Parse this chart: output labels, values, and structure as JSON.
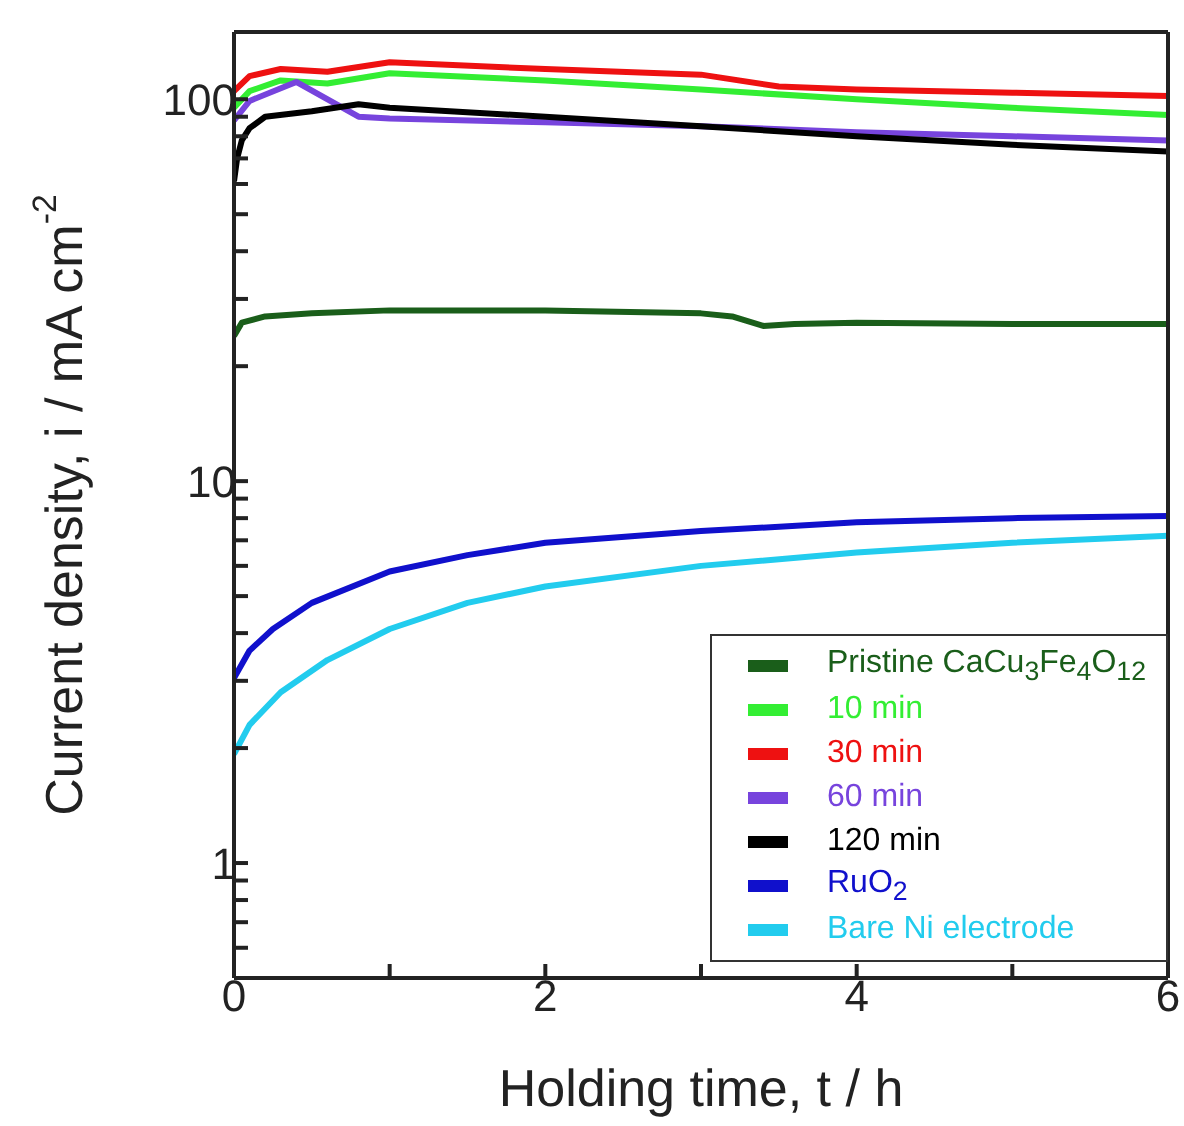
{
  "chart_data": {
    "type": "line",
    "xlabel": "Holding time, t / h",
    "ylabel": "Current density, i / mA cm$^{-2}$",
    "log": "y",
    "xlim": [
      0,
      6
    ],
    "xticks": [
      0,
      {
        "value": 1,
        "label": null
      },
      2,
      {
        "value": 3,
        "label": null
      },
      4,
      {
        "value": 5,
        "label": null
      },
      6
    ],
    "ylim": [
      0.5,
      150
    ],
    "yticks": [
      {
        "value": 0.5,
        "label": null
      },
      {
        "value": 0.6,
        "label": null
      },
      {
        "value": 0.7,
        "label": null
      },
      {
        "value": 0.8,
        "label": null
      },
      {
        "value": 0.9,
        "label": null
      },
      1,
      {
        "value": 2,
        "label": null
      },
      {
        "value": 3,
        "label": null
      },
      {
        "value": 4,
        "label": null
      },
      {
        "value": 5,
        "label": null
      },
      {
        "value": 6,
        "label": null
      },
      {
        "value": 7,
        "label": null
      },
      {
        "value": 8,
        "label": null
      },
      {
        "value": 9,
        "label": null
      },
      10,
      {
        "value": 20,
        "label": null
      },
      {
        "value": 30,
        "label": null
      },
      {
        "value": 40,
        "label": null
      },
      {
        "value": 50,
        "label": null
      },
      {
        "value": 60,
        "label": null
      },
      {
        "value": 70,
        "label": null
      },
      {
        "value": 80,
        "label": null
      },
      {
        "value": 90,
        "label": null
      },
      100
    ],
    "grid": false,
    "legend": "bottom right",
    "marker": "none",
    "line_style": "solid",
    "series": [
      {
        "name": "Pristine CaCu$_{3}$Fe$_{4}$O$_{12}$",
        "color": "#1a5e1a",
        "x": [
          0,
          0.05,
          0.2,
          0.5,
          1,
          2,
          3,
          3.2,
          3.4,
          3.6,
          4,
          5,
          6
        ],
        "values": [
          24,
          26,
          27,
          27.5,
          28,
          28,
          27.5,
          27,
          25.5,
          25.8,
          26,
          25.8,
          25.8
        ]
      },
      {
        "name": "10 min",
        "color": "#33ee33",
        "x": [
          0,
          0.1,
          0.3,
          0.6,
          1,
          2,
          3,
          4,
          5,
          6
        ],
        "values": [
          95,
          105,
          112,
          110,
          117,
          112,
          106,
          100,
          95,
          91
        ]
      },
      {
        "name": "30 min",
        "color": "#ee1111",
        "x": [
          0,
          0.1,
          0.3,
          0.6,
          1,
          2,
          3,
          3.5,
          4,
          5,
          6
        ],
        "values": [
          105,
          115,
          120,
          118,
          125,
          120,
          116,
          108,
          106,
          104,
          102
        ]
      },
      {
        "name": "60 min",
        "color": "#7744dd",
        "x": [
          0,
          0.1,
          0.4,
          0.8,
          1,
          2,
          3,
          4,
          5,
          6
        ],
        "values": [
          88,
          99,
          111,
          90,
          89,
          87,
          85,
          82,
          80,
          78
        ]
      },
      {
        "name": "120 min",
        "color": "#000000",
        "x": [
          0,
          0.02,
          0.05,
          0.1,
          0.2,
          0.5,
          0.8,
          1,
          2,
          3,
          4,
          5,
          6
        ],
        "values": [
          61,
          70,
          78,
          84,
          90,
          93,
          97,
          95,
          90,
          85,
          80,
          76,
          73
        ]
      },
      {
        "name": "RuO$_{2}$",
        "color": "#1010cc",
        "x": [
          0,
          0.1,
          0.25,
          0.5,
          1,
          1.5,
          2,
          3,
          4,
          5,
          6
        ],
        "values": [
          3.05,
          3.6,
          4.1,
          4.8,
          5.8,
          6.4,
          6.9,
          7.4,
          7.8,
          8,
          8.1
        ]
      },
      {
        "name": "Bare Ni electrode",
        "color": "#22ccee",
        "x": [
          0,
          0.1,
          0.3,
          0.6,
          1,
          1.5,
          2,
          3,
          4,
          5,
          6
        ],
        "values": [
          1.93,
          2.3,
          2.8,
          3.4,
          4.1,
          4.8,
          5.3,
          6,
          6.5,
          6.9,
          7.2
        ]
      }
    ]
  }
}
